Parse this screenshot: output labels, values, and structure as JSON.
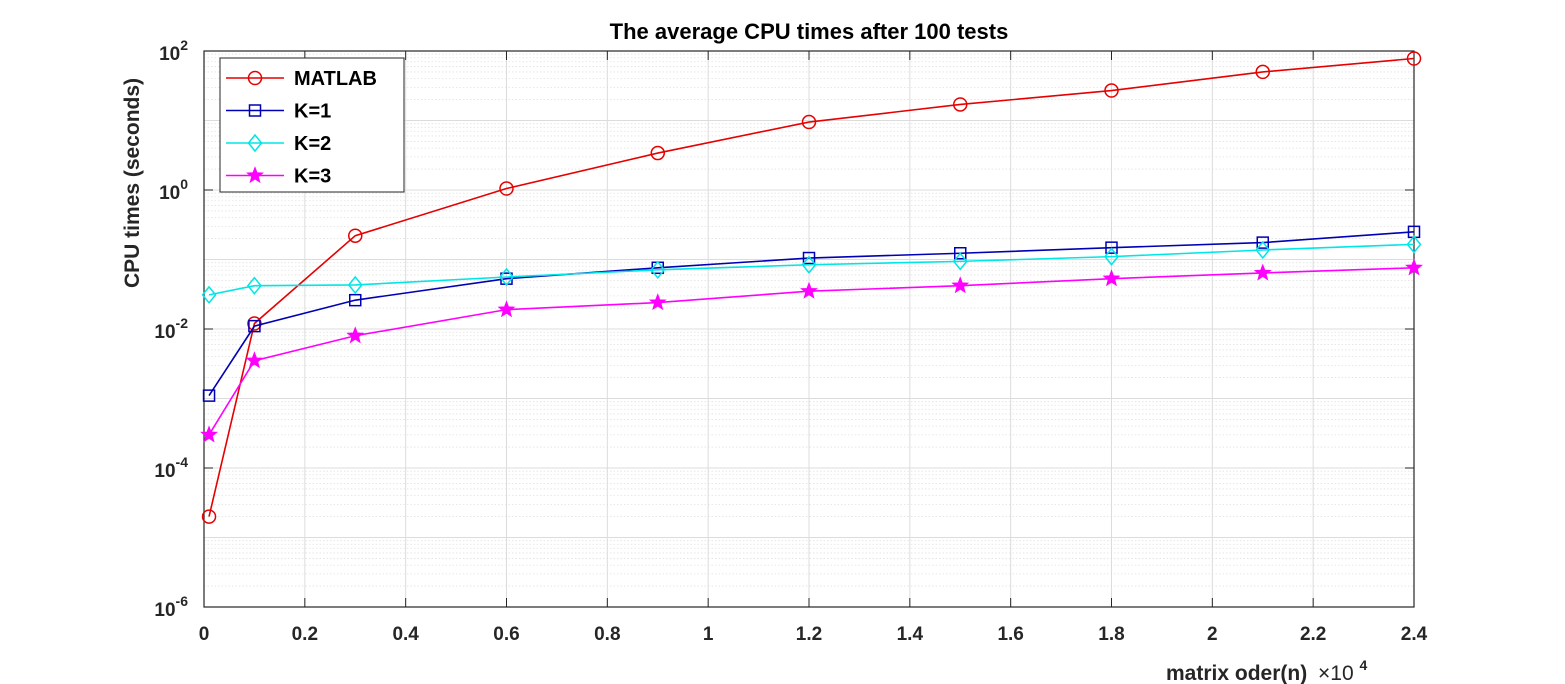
{
  "chart_data": {
    "type": "line",
    "title": "The average CPU times after 100 tests",
    "xlabel": "matrix oder(n)",
    "x_multiplier": "×10",
    "x_multiplier_exp": "4",
    "ylabel": "CPU times (seconds)",
    "xlim": [
      0,
      2.4
    ],
    "ylim": [
      1e-06,
      100
    ],
    "yscale": "log",
    "grid": true,
    "legend_position": "top-left",
    "x_ticks": [
      "0",
      "0.2",
      "0.4",
      "0.6",
      "0.8",
      "1",
      "1.2",
      "1.4",
      "1.6",
      "1.8",
      "2",
      "2.2",
      "2.4"
    ],
    "y_ticks": [
      {
        "base": "10",
        "exp": "2"
      },
      {
        "base": "10",
        "exp": "0"
      },
      {
        "base": "10",
        "exp": "-2"
      },
      {
        "base": "10",
        "exp": "-4"
      },
      {
        "base": "10",
        "exp": "-6"
      }
    ],
    "x": [
      0.01,
      0.1,
      0.3,
      0.6,
      0.9,
      1.2,
      1.5,
      1.8,
      2.1,
      2.4
    ],
    "series": [
      {
        "name": "MATLAB",
        "color": "#e60000",
        "marker": "circle",
        "values": [
          2e-05,
          0.012,
          0.22,
          1.05,
          3.4,
          9.5,
          17,
          27,
          50,
          78
        ]
      },
      {
        "name": "K=1",
        "color": "#0000b4",
        "marker": "square",
        "values": [
          0.0011,
          0.011,
          0.026,
          0.053,
          0.076,
          0.105,
          0.123,
          0.148,
          0.175,
          0.25
        ]
      },
      {
        "name": "K=2",
        "color": "#00e6e6",
        "marker": "diamond",
        "values": [
          0.031,
          0.042,
          0.043,
          0.056,
          0.071,
          0.084,
          0.094,
          0.11,
          0.137,
          0.165
        ]
      },
      {
        "name": "K=3",
        "color": "#ff00ff",
        "marker": "star",
        "values": [
          0.0003,
          0.0035,
          0.008,
          0.019,
          0.024,
          0.035,
          0.042,
          0.053,
          0.064,
          0.076
        ]
      }
    ]
  }
}
